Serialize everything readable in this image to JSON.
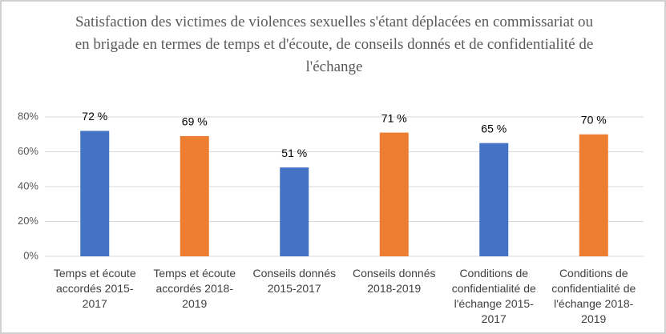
{
  "chart_data": {
    "type": "bar",
    "title": "Satisfaction des victimes de violences sexuelles s'étant déplacées en commissariat ou en brigade en termes de temps et d'écoute, de conseils donnés et de confidentialité de l'échange",
    "categories": [
      "Temps et écoute accordés 2015-2017",
      "Temps et écoute accordés 2018-2019",
      "Conseils donnés 2015-2017",
      "Conseils donnés 2018-2019",
      "Conditions de confidentialité de l'échange 2015-2017",
      "Conditions de confidentialité de l'échange 2018-2019"
    ],
    "values": [
      72,
      69,
      51,
      71,
      65,
      70
    ],
    "value_labels": [
      "72 %",
      "69 %",
      "51 %",
      "71 %",
      "65 %",
      "70 %"
    ],
    "colors": [
      "#4472c4",
      "#ed7d31",
      "#4472c4",
      "#ed7d31",
      "#4472c4",
      "#ed7d31"
    ],
    "ylim": [
      0,
      80
    ],
    "yticks": [
      {
        "value": 0,
        "label": "0%"
      },
      {
        "value": 20,
        "label": "20%"
      },
      {
        "value": 40,
        "label": "40%"
      },
      {
        "value": 60,
        "label": "60%"
      },
      {
        "value": 80,
        "label": "80%"
      }
    ],
    "grid": true
  }
}
